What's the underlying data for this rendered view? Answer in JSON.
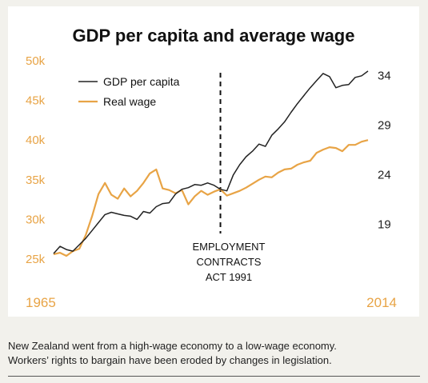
{
  "chart_data": {
    "type": "line",
    "title": "GDP per capita and average wage",
    "x_start_label": "1965",
    "x_end_label": "2014",
    "xlim": [
      1965,
      2014
    ],
    "y_left": {
      "ylim": [
        25,
        50
      ],
      "ticks": [
        "25k",
        "30k",
        "35k",
        "40k",
        "45k",
        "50k"
      ],
      "tick_values": [
        25,
        30,
        35,
        40,
        45,
        50
      ],
      "color": "#e8a446"
    },
    "y_right": {
      "ylim": [
        15.5,
        35.5
      ],
      "ticks": [
        "19",
        "24",
        "29",
        "34"
      ],
      "tick_values": [
        19,
        24,
        29,
        34
      ]
    },
    "legend": {
      "placement": "top-left",
      "entries": [
        "GDP per capita",
        "Real wage"
      ]
    },
    "annotation": {
      "x": 1991,
      "lines": [
        "EMPLOYMENT",
        "CONTRACTS",
        "ACT 1991"
      ]
    },
    "grid": false,
    "series": [
      {
        "name": "GDP per capita",
        "axis": "left",
        "color": "#222222",
        "points": [
          [
            1965,
            25.7
          ],
          [
            1966,
            26.6
          ],
          [
            1967,
            26.2
          ],
          [
            1968,
            26.0
          ],
          [
            1969,
            26.8
          ],
          [
            1970,
            27.6
          ],
          [
            1971,
            28.6
          ],
          [
            1972,
            29.6
          ],
          [
            1973,
            30.6
          ],
          [
            1974,
            30.9
          ],
          [
            1975,
            30.7
          ],
          [
            1976,
            30.5
          ],
          [
            1977,
            30.4
          ],
          [
            1978,
            30.0
          ],
          [
            1979,
            31.0
          ],
          [
            1980,
            30.8
          ],
          [
            1981,
            31.6
          ],
          [
            1982,
            32.0
          ],
          [
            1983,
            32.1
          ],
          [
            1984,
            33.2
          ],
          [
            1985,
            33.8
          ],
          [
            1986,
            34.0
          ],
          [
            1987,
            34.4
          ],
          [
            1988,
            34.3
          ],
          [
            1989,
            34.6
          ],
          [
            1990,
            34.3
          ],
          [
            1991,
            33.8
          ],
          [
            1992,
            33.6
          ],
          [
            1993,
            35.6
          ],
          [
            1994,
            36.9
          ],
          [
            1995,
            37.9
          ],
          [
            1996,
            38.6
          ],
          [
            1997,
            39.5
          ],
          [
            1998,
            39.2
          ],
          [
            1999,
            40.6
          ],
          [
            2000,
            41.4
          ],
          [
            2001,
            42.3
          ],
          [
            2002,
            43.5
          ],
          [
            2003,
            44.6
          ],
          [
            2004,
            45.6
          ],
          [
            2005,
            46.6
          ],
          [
            2006,
            47.5
          ],
          [
            2007,
            48.4
          ],
          [
            2008,
            48.0
          ],
          [
            2009,
            46.6
          ],
          [
            2010,
            46.9
          ],
          [
            2011,
            47.0
          ],
          [
            2012,
            47.9
          ],
          [
            2013,
            48.1
          ],
          [
            2014,
            48.7
          ]
        ]
      },
      {
        "name": "Real wage",
        "axis": "left",
        "color": "#e8a446",
        "points": [
          [
            1965,
            25.6
          ],
          [
            1966,
            25.8
          ],
          [
            1967,
            25.4
          ],
          [
            1968,
            26.0
          ],
          [
            1969,
            26.3
          ],
          [
            1970,
            28.0
          ],
          [
            1971,
            30.4
          ],
          [
            1972,
            33.2
          ],
          [
            1973,
            34.6
          ],
          [
            1974,
            33.1
          ],
          [
            1975,
            32.6
          ],
          [
            1976,
            33.9
          ],
          [
            1977,
            32.9
          ],
          [
            1978,
            33.6
          ],
          [
            1979,
            34.6
          ],
          [
            1980,
            35.8
          ],
          [
            1981,
            36.3
          ],
          [
            1982,
            33.9
          ],
          [
            1983,
            33.7
          ],
          [
            1984,
            33.3
          ],
          [
            1985,
            33.7
          ],
          [
            1986,
            31.9
          ],
          [
            1987,
            32.9
          ],
          [
            1988,
            33.6
          ],
          [
            1989,
            33.1
          ],
          [
            1990,
            33.5
          ],
          [
            1991,
            33.8
          ],
          [
            1992,
            33.0
          ],
          [
            1993,
            33.3
          ],
          [
            1994,
            33.6
          ],
          [
            1995,
            34.0
          ],
          [
            1996,
            34.5
          ],
          [
            1997,
            35.0
          ],
          [
            1998,
            35.4
          ],
          [
            1999,
            35.3
          ],
          [
            2000,
            35.9
          ],
          [
            2001,
            36.3
          ],
          [
            2002,
            36.4
          ],
          [
            2003,
            36.9
          ],
          [
            2004,
            37.2
          ],
          [
            2005,
            37.4
          ],
          [
            2006,
            38.4
          ],
          [
            2007,
            38.8
          ],
          [
            2008,
            39.1
          ],
          [
            2009,
            39.0
          ],
          [
            2010,
            38.6
          ],
          [
            2011,
            39.4
          ],
          [
            2012,
            39.4
          ],
          [
            2013,
            39.8
          ],
          [
            2014,
            40.0
          ]
        ]
      }
    ]
  },
  "caption": {
    "line1": "New Zealand went from a high-wage economy to a low-wage economy.",
    "line2": "Workers’ rights to bargain have been eroded by changes in legislation."
  }
}
